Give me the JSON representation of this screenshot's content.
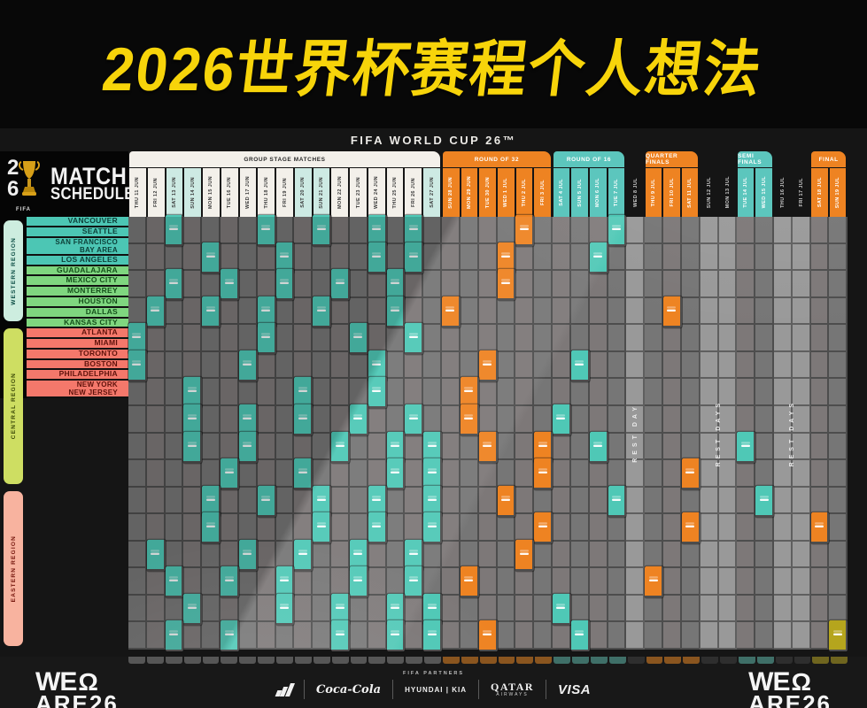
{
  "title": "2026世界杯赛程个人想法",
  "fifa_header": "FIFA WORLD CUP 26™",
  "logo": {
    "num_top": "2",
    "num_bottom": "6",
    "fifa_word": "FIFA",
    "line1": "MATCH",
    "line2": "SCHEDULE"
  },
  "sections": [
    {
      "id": "group",
      "label": "GROUP STAGE MATCHES",
      "start": 0,
      "end": 16,
      "bg": "#f3f0ea",
      "fg": "#2a2a2a",
      "date_fg": "#3a3a3a"
    },
    {
      "id": "r32",
      "label": "ROUND OF 32",
      "start": 17,
      "end": 22,
      "bg": "#ee8322",
      "fg": "#ffffff",
      "date_fg": "#ffffff"
    },
    {
      "id": "r16",
      "label": "ROUND OF 16",
      "start": 23,
      "end": 26,
      "bg": "#5cc6bd",
      "fg": "#ffffff",
      "date_fg": "#ffffff"
    },
    {
      "id": "qf",
      "label": "QUARTER FINALS",
      "start": 28,
      "end": 30,
      "bg": "#ee8322",
      "fg": "#ffffff",
      "date_fg": "#ffffff"
    },
    {
      "id": "sf",
      "label": "SEMI FINALS",
      "start": 33,
      "end": 34,
      "bg": "#5cc6bd",
      "fg": "#ffffff",
      "date_fg": "#ffffff"
    },
    {
      "id": "final",
      "label": "FINAL",
      "start": 37,
      "end": 38,
      "bg": "#ee8322",
      "fg": "#ffffff",
      "date_fg": "#ffffff"
    }
  ],
  "rest_bands": [
    {
      "start": 27,
      "end": 27,
      "label": "REST DAY"
    },
    {
      "start": 31,
      "end": 32,
      "label": "REST DAYS"
    },
    {
      "start": 35,
      "end": 36,
      "label": "REST DAYS"
    }
  ],
  "weekend_cols": [
    2,
    3,
    9,
    10,
    16
  ],
  "weekend_tint": "#cdeae3",
  "columns": [
    {
      "d": "THU 11 JUN",
      "s": "group",
      "hl": "#4fc8b6"
    },
    {
      "d": "FRI 12 JUN",
      "s": "group",
      "hl": "#4fc8b6"
    },
    {
      "d": "SAT 13 JUN",
      "s": "group",
      "hl": "#4fc8b6"
    },
    {
      "d": "SUN 14 JUN",
      "s": "group",
      "hl": "#4fc8b6"
    },
    {
      "d": "MON 15 JUN",
      "s": "group",
      "hl": "#4fc8b6"
    },
    {
      "d": "TUE 16 JUN",
      "s": "group",
      "hl": "#4fc8b6"
    },
    {
      "d": "WED 17 JUN",
      "s": "group",
      "hl": "#4fc8b6"
    },
    {
      "d": "THU 18 JUN",
      "s": "group",
      "hl": "#4fc8b6"
    },
    {
      "d": "FRI 19 JUN",
      "s": "group",
      "hl": "#4fc8b6"
    },
    {
      "d": "SAT 20 JUN",
      "s": "group",
      "hl": "#4fc8b6"
    },
    {
      "d": "SUN 21 JUN",
      "s": "group",
      "hl": "#4fc8b6"
    },
    {
      "d": "MON 22 JUN",
      "s": "group",
      "hl": "#4fc8b6"
    },
    {
      "d": "TUE 23 JUN",
      "s": "group",
      "hl": "#4fc8b6"
    },
    {
      "d": "WED 24 JUN",
      "s": "group",
      "hl": "#4fc8b6"
    },
    {
      "d": "THU 25 JUN",
      "s": "group",
      "hl": "#4fc8b6"
    },
    {
      "d": "FRI 26 JUN",
      "s": "group",
      "hl": "#4fc8b6"
    },
    {
      "d": "SAT 27 JUN",
      "s": "group",
      "hl": "#4fc8b6"
    },
    {
      "d": "SUN 28 JUN",
      "s": "r32",
      "hl": "#ee8322"
    },
    {
      "d": "MON 29 JUN",
      "s": "r32",
      "hl": "#ee8322"
    },
    {
      "d": "TUE 30 JUN",
      "s": "r32",
      "hl": "#ee8322"
    },
    {
      "d": "WED 1 JUL",
      "s": "r32",
      "hl": "#ee8322"
    },
    {
      "d": "THU 2 JUL",
      "s": "r32",
      "hl": "#ee8322"
    },
    {
      "d": "FRI 3 JUL",
      "s": "r32",
      "hl": "#ee8322"
    },
    {
      "d": "SAT 4 JUL",
      "s": "r16",
      "hl": "#4fc8b6"
    },
    {
      "d": "SUN 5 JUL",
      "s": "r16",
      "hl": "#4fc8b6"
    },
    {
      "d": "MON 6 JUL",
      "s": "r16",
      "hl": "#4fc8b6"
    },
    {
      "d": "TUE 7 JUL",
      "s": "r16",
      "hl": "#4fc8b6"
    },
    {
      "d": "WED 8 JUL",
      "s": "rest",
      "hl": ""
    },
    {
      "d": "THU 9 JUL",
      "s": "qf",
      "hl": "#ee8322"
    },
    {
      "d": "FRI 10 JUL",
      "s": "qf",
      "hl": "#ee8322"
    },
    {
      "d": "SAT 11 JUL",
      "s": "qf",
      "hl": "#ee8322"
    },
    {
      "d": "SUN 12 JUL",
      "s": "rest",
      "hl": ""
    },
    {
      "d": "MON 13 JUL",
      "s": "rest",
      "hl": ""
    },
    {
      "d": "TUE 14 JUL",
      "s": "sf",
      "hl": "#4fc8b6"
    },
    {
      "d": "WED 15 JUL",
      "s": "sf",
      "hl": "#4fc8b6"
    },
    {
      "d": "THU 16 JUL",
      "s": "rest",
      "hl": ""
    },
    {
      "d": "FRI 17 JUL",
      "s": "rest",
      "hl": ""
    },
    {
      "d": "SAT 18 JUL",
      "s": "final",
      "hl": "#ee8322"
    },
    {
      "d": "SUN 19 JUL",
      "s": "final",
      "hl": "#b5a51d"
    }
  ],
  "regions": [
    {
      "name": "WESTERN REGION",
      "tab_bg": "#cdeddf",
      "tab_fg": "#0e4f46",
      "row_bg": "#4cc6b4",
      "row_fg": "#0c3f38",
      "cities": [
        {
          "label": "VANCOUVER",
          "cells": [
            2,
            7,
            10,
            13,
            15,
            21,
            26
          ]
        },
        {
          "label": "SEATTLE",
          "cells": [
            4,
            8,
            13,
            15,
            20,
            25
          ]
        },
        {
          "label": "SAN FRANCISCO|BAY AREA",
          "cells": [
            2,
            5,
            8,
            11,
            14,
            20
          ]
        },
        {
          "label": "LOS ANGELES",
          "cells": [
            1,
            4,
            7,
            10,
            14,
            17,
            29
          ]
        }
      ]
    },
    {
      "name": "CENTRAL REGION",
      "tab_bg": "#cede62",
      "tab_fg": "#3c4a08",
      "row_bg": "#7fd67f",
      "row_fg": "#14501a",
      "cities": [
        {
          "label": "GUADALAJARA",
          "cells": [
            0,
            7,
            12,
            15
          ]
        },
        {
          "label": "MEXICO CITY",
          "cells": [
            0,
            6,
            13,
            19,
            24
          ]
        },
        {
          "label": "MONTERREY",
          "cells": [
            3,
            9,
            13,
            18
          ]
        },
        {
          "label": "HOUSTON",
          "cells": [
            3,
            6,
            9,
            12,
            15,
            18,
            23
          ]
        },
        {
          "label": "DALLAS",
          "cells": [
            3,
            6,
            11,
            14,
            16,
            19,
            22,
            25,
            33
          ]
        },
        {
          "label": "KANSAS CITY",
          "cells": [
            5,
            9,
            14,
            16,
            22,
            30
          ]
        }
      ]
    },
    {
      "name": "EASTERN REGION",
      "tab_bg": "#f8b39f",
      "tab_fg": "#75170e",
      "row_bg": "#f4786b",
      "row_fg": "#5f120b",
      "cities": [
        {
          "label": "ATLANTA",
          "cells": [
            4,
            7,
            10,
            13,
            16,
            20,
            26,
            34
          ]
        },
        {
          "label": "MIAMI",
          "cells": [
            4,
            10,
            13,
            16,
            22,
            30,
            37
          ]
        },
        {
          "label": "TORONTO",
          "cells": [
            1,
            6,
            9,
            12,
            15,
            21
          ]
        },
        {
          "label": "BOSTON",
          "cells": [
            2,
            5,
            8,
            12,
            15,
            18,
            28
          ]
        },
        {
          "label": "PHILADELPHIA",
          "cells": [
            3,
            8,
            11,
            14,
            16,
            23
          ]
        },
        {
          "label": "NEW YORK|NEW JERSEY",
          "cells": [
            2,
            5,
            11,
            14,
            16,
            19,
            24,
            38
          ]
        }
      ]
    }
  ],
  "footer": {
    "partners_label": "FIFA PARTNERS",
    "we_text": "WE",
    "we_mark": "Ω",
    "we_sub": "ARE26",
    "sponsors": {
      "adidas": "adidas",
      "cocacola": "Coca-Cola",
      "hyundai": "HYUNDAI | KIA",
      "qatar": "QATAR",
      "qatar_sub": "AIRWAYS",
      "visa": "VISA"
    }
  },
  "colors": {
    "title": "#f7d40a",
    "teal": "#4fc8b6",
    "orange": "#ee8322",
    "gold": "#b5a51d",
    "grid_cell": "#767676",
    "grid_line": "#4d4d4d",
    "rest_col": "#8e8e8e"
  }
}
